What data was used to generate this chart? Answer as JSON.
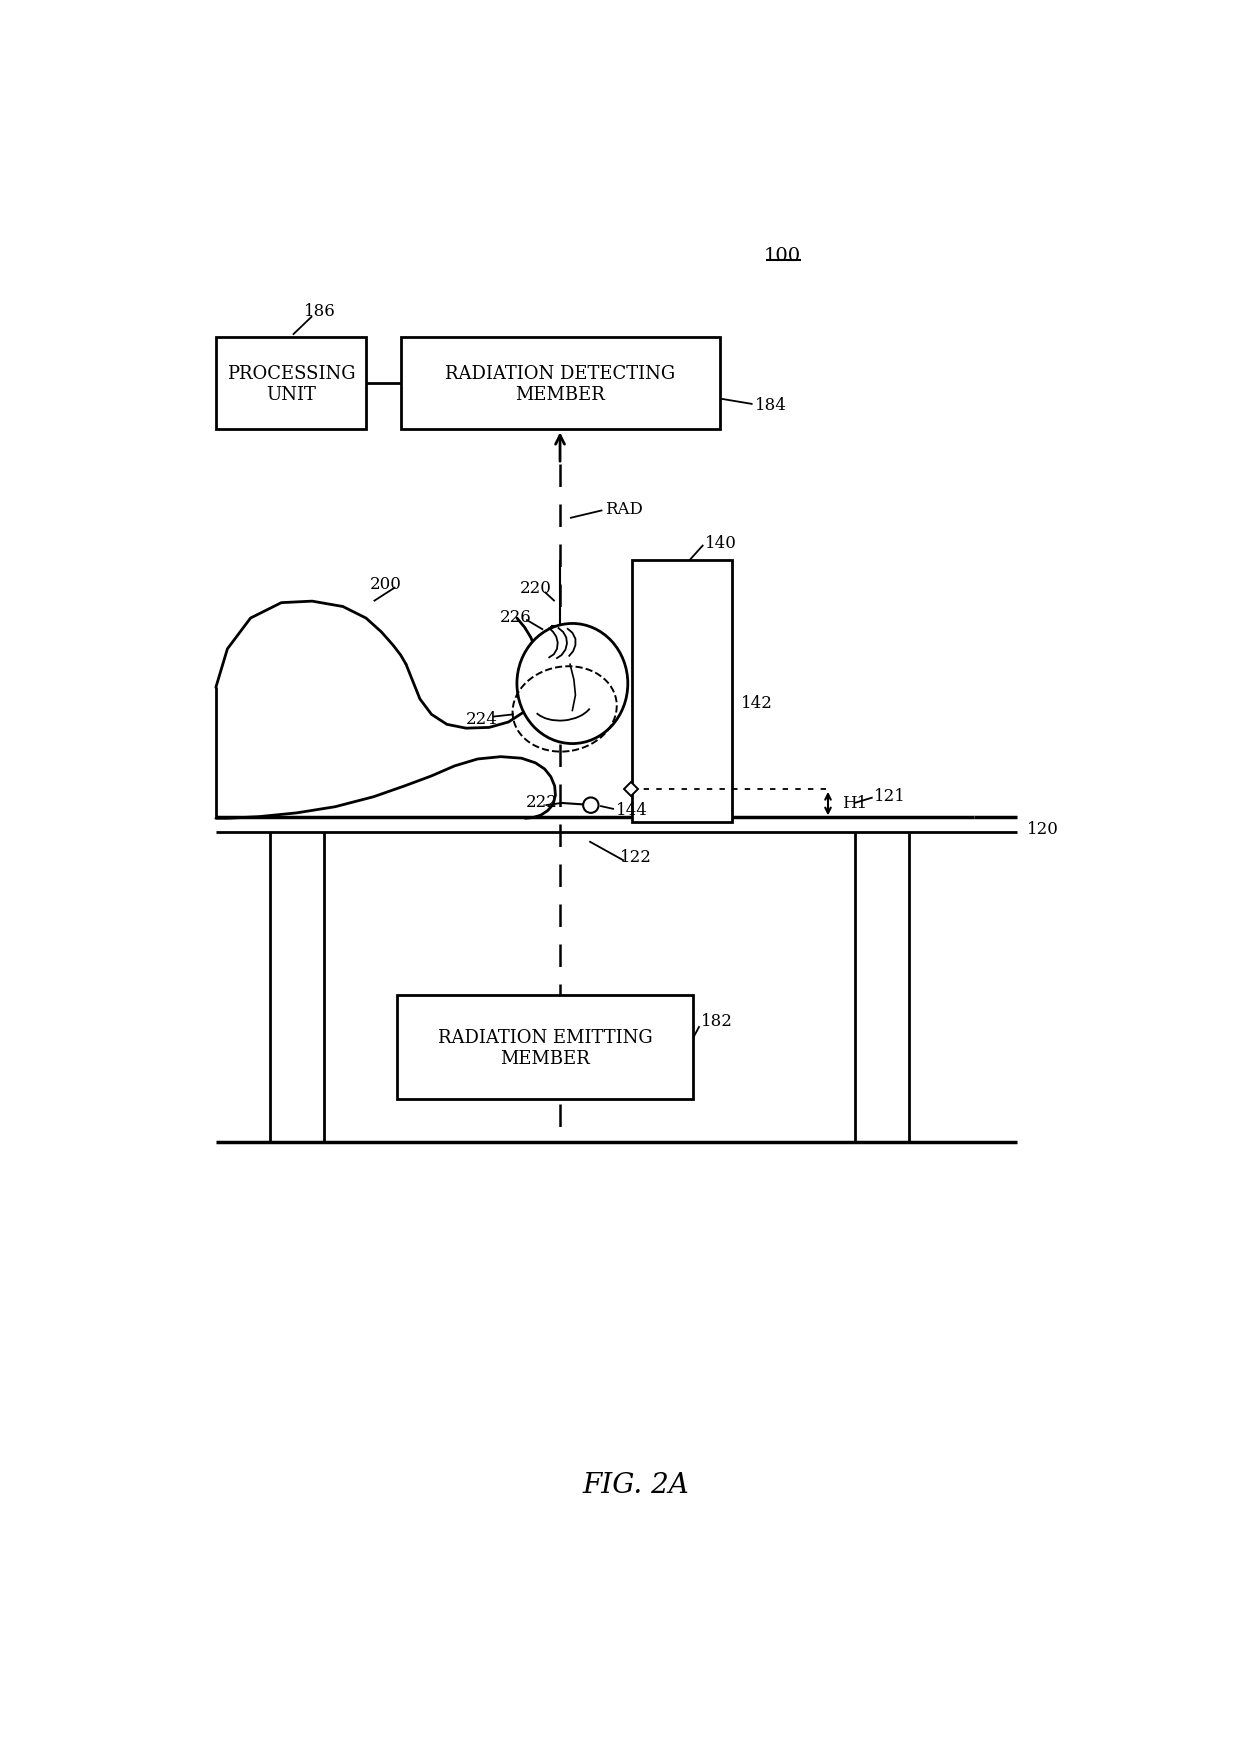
{
  "bg_color": "#ffffff",
  "line_color": "#000000",
  "fig_label": "FIG. 2A",
  "ref_100": "100",
  "ref_186": "186",
  "ref_184": "184",
  "ref_200": "200",
  "ref_140": "140",
  "ref_220": "220",
  "ref_224": "224",
  "ref_226": "226",
  "ref_142": "142",
  "ref_222": "222",
  "ref_144": "144",
  "ref_H1": "H1",
  "ref_121": "121",
  "ref_120": "120",
  "ref_122": "122",
  "ref_182": "182",
  "ref_RAD": "RAD",
  "box_processing_label": "PROCESSING\nUNIT",
  "box_radiation_detecting_label": "RADIATION DETECTING\nMEMBER",
  "box_radiation_emitting_label": "RADIATION EMITTING\nMEMBER",
  "lw_main": 2.0,
  "lw_thin": 1.5,
  "lw_leader": 1.3,
  "fs_label": 13,
  "fs_ref": 12,
  "fs_fig": 20
}
